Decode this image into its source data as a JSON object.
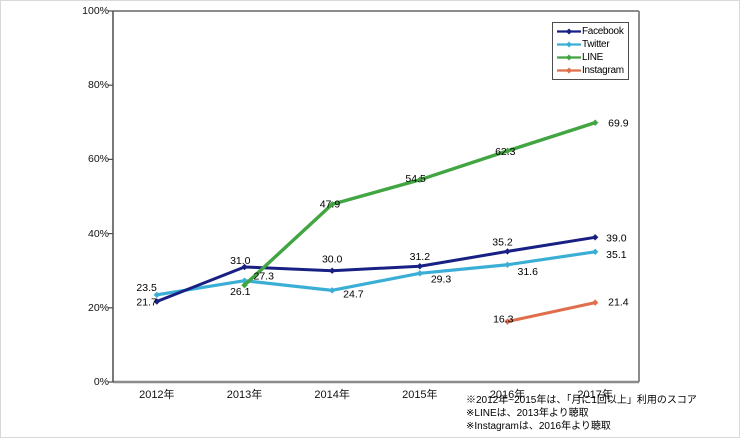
{
  "chart_data": {
    "type": "line",
    "title": "",
    "categories": [
      "2012年",
      "2013年",
      "2014年",
      "2015年",
      "2016年",
      "2017年"
    ],
    "ylim": [
      0,
      100
    ],
    "y_ticks": [
      "0%",
      "20%",
      "40%",
      "60%",
      "80%",
      "100%"
    ],
    "grid": false,
    "legend_position": "top-right-inside",
    "series": [
      {
        "name": "Facebook",
        "color": "#182084",
        "values": [
          21.7,
          31.0,
          30.0,
          31.2,
          35.2,
          39.0
        ]
      },
      {
        "name": "Twitter",
        "color": "#3BAED6",
        "values": [
          23.5,
          27.3,
          24.7,
          29.3,
          31.6,
          35.1
        ]
      },
      {
        "name": "LINE",
        "color": "#41A541",
        "values": [
          null,
          26.1,
          47.9,
          54.5,
          62.3,
          69.9
        ]
      },
      {
        "name": "Instagram",
        "color": "#E06E4C",
        "values": [
          null,
          null,
          null,
          null,
          16.3,
          21.4
        ]
      }
    ],
    "footnotes": [
      "※2012年~2015年は、「月に1回以上」利用のスコア",
      "※LINEは、2013年より聴取",
      "※Instagramは、2016年より聴取"
    ]
  }
}
